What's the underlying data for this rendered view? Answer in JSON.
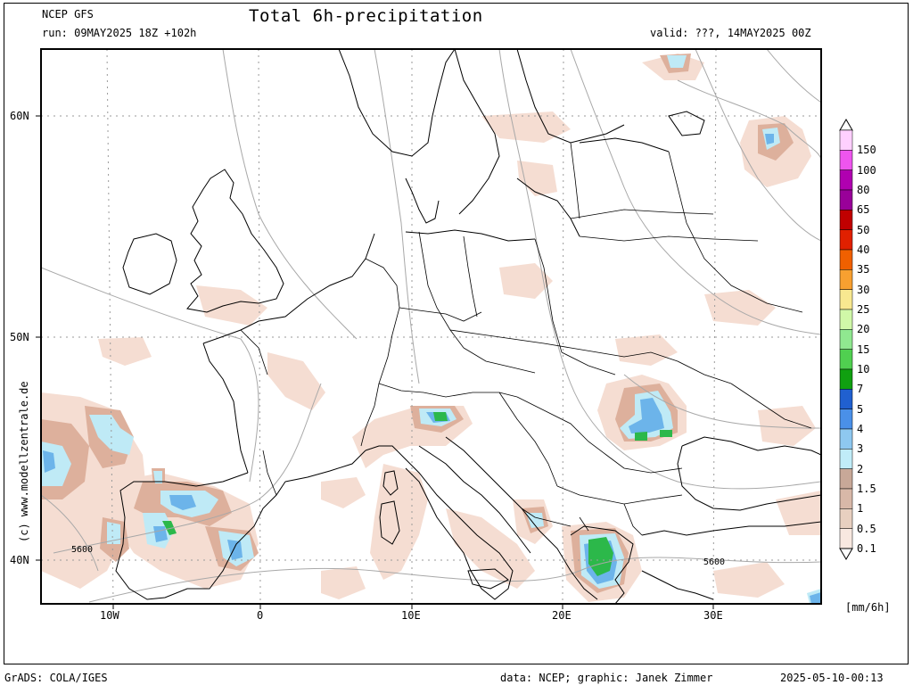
{
  "header": {
    "model": "NCEP GFS",
    "run": "run: 09MAY2025 18Z +102h",
    "title": "Total 6h-precipitation",
    "valid": "valid: ???, 14MAY2025 00Z"
  },
  "credit": "(c) www.modellzentrale.de",
  "footer": {
    "software": "GrADS: COLA/IGES",
    "source": "data: NCEP; graphic: Janek Zimmer",
    "timestamp": "2025-05-10-00:13"
  },
  "axes": {
    "lat_labels": [
      "60N",
      "50N",
      "40N"
    ],
    "lon_labels": [
      "10W",
      "0",
      "10E",
      "20E",
      "30E"
    ]
  },
  "contour_labels": [
    "5600",
    "5600"
  ],
  "colorbar": {
    "unit": "[mm/6h]",
    "levels": [
      "150",
      "100",
      "80",
      "65",
      "50",
      "40",
      "35",
      "30",
      "25",
      "20",
      "15",
      "10",
      "7",
      "5",
      "4",
      "3",
      "2",
      "1.5",
      "1",
      "0.5",
      "0.1"
    ],
    "colors": [
      "#ffd0ff",
      "#ee55ee",
      "#b000b0",
      "#990099",
      "#c00000",
      "#e02000",
      "#f06000",
      "#f8a030",
      "#f8e890",
      "#d0f8a8",
      "#90e890",
      "#50d050",
      "#10a010",
      "#2060d0",
      "#4a90e8",
      "#8ec8f0",
      "#c0ecf8",
      "#c8a898",
      "#d8b8a8",
      "#e8d0c0",
      "#f8e8e0"
    ]
  },
  "precip_colors": {
    "light": "#f5ddd2",
    "brown": "#ddb09c",
    "blue_light": "#bfeaf6",
    "blue_mid": "#6cb4ea",
    "blue_dark": "#2a74d8",
    "green": "#2cb84a",
    "green_dark": "#108a20"
  }
}
